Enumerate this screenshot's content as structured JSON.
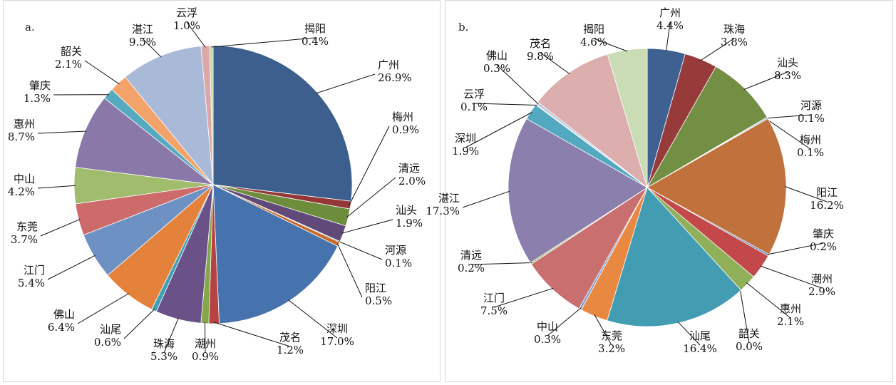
{
  "chart_data": [
    {
      "type": "pie",
      "panel_label": "a.",
      "unit": "%",
      "slices": [
        {
          "name": "广州",
          "value": 26.9,
          "label": "26.9%",
          "color": "#3d5f8e"
        },
        {
          "name": "梅州",
          "value": 0.9,
          "label": "0.9%",
          "color": "#953737"
        },
        {
          "name": "清远",
          "value": 2.0,
          "label": "2.0%",
          "color": "#6d8d3d"
        },
        {
          "name": "汕头",
          "value": 1.9,
          "label": "1.9%",
          "color": "#614a7a"
        },
        {
          "name": "河源",
          "value": 0.1,
          "label": "0.1%",
          "color": "#3a8da1"
        },
        {
          "name": "阳江",
          "value": 0.5,
          "label": "0.5%",
          "color": "#c86c2c"
        },
        {
          "name": "深圳",
          "value": 17.0,
          "label": "17.0%",
          "color": "#4672ae"
        },
        {
          "name": "茂名",
          "value": 1.2,
          "label": "1.2%",
          "color": "#b64341"
        },
        {
          "name": "潮州",
          "value": 0.9,
          "label": "0.9%",
          "color": "#86a64b"
        },
        {
          "name": "珠海",
          "value": 5.3,
          "label": "5.3%",
          "color": "#6a5289"
        },
        {
          "name": "汕尾",
          "value": 0.6,
          "label": "0.6%",
          "color": "#3f9fb5"
        },
        {
          "name": "佛山",
          "value": 6.4,
          "label": "6.4%",
          "color": "#e4813a"
        },
        {
          "name": "江门",
          "value": 5.4,
          "label": "5.4%",
          "color": "#6e91c4"
        },
        {
          "name": "东莞",
          "value": 3.7,
          "label": "3.7%",
          "color": "#cd6a6a"
        },
        {
          "name": "中山",
          "value": 4.2,
          "label": "4.2%",
          "color": "#a0bc6c"
        },
        {
          "name": "惠州",
          "value": 8.7,
          "label": "8.7%",
          "color": "#8a79a8"
        },
        {
          "name": "肇庆",
          "value": 1.3,
          "label": "1.3%",
          "color": "#56aabf"
        },
        {
          "name": "韶关",
          "value": 2.1,
          "label": "2.1%",
          "color": "#f3a26a"
        },
        {
          "name": "湛江",
          "value": 9.5,
          "label": "9.5%",
          "color": "#a8bad8"
        },
        {
          "name": "云浮",
          "value": 1.0,
          "label": "1.0%",
          "color": "#daa8a8"
        },
        {
          "name": "揭阳",
          "value": 0.4,
          "label": "0.4%",
          "color": "#c5d7a8"
        }
      ]
    },
    {
      "type": "pie",
      "panel_label": "b.",
      "unit": "%",
      "slices": [
        {
          "name": "广州",
          "value": 4.4,
          "label": "4.4%",
          "color": "#3f6192"
        },
        {
          "name": "珠海",
          "value": 3.8,
          "label": "3.8%",
          "color": "#963a3a"
        },
        {
          "name": "汕头",
          "value": 8.3,
          "label": "8.3%",
          "color": "#728f43"
        },
        {
          "name": "河源",
          "value": 0.1,
          "label": "0.1%",
          "color": "#5e4a7b"
        },
        {
          "name": "梅州",
          "value": 0.1,
          "label": "0.1%",
          "color": "#3c8aa0"
        },
        {
          "name": "阳江",
          "value": 16.2,
          "label": "16.2%",
          "color": "#c0713c"
        },
        {
          "name": "肇庆",
          "value": 0.2,
          "label": "0.2%",
          "color": "#5b7fb8"
        },
        {
          "name": "潮州",
          "value": 2.9,
          "label": "2.9%",
          "color": "#c2484a"
        },
        {
          "name": "惠州",
          "value": 2.1,
          "label": "2.1%",
          "color": "#8faf58"
        },
        {
          "name": "韶关",
          "value": 0.0,
          "label": "0.0%",
          "color": "#7d6aa0"
        },
        {
          "name": "汕尾",
          "value": 16.4,
          "label": "16.4%",
          "color": "#439db2"
        },
        {
          "name": "东莞",
          "value": 3.2,
          "label": "3.2%",
          "color": "#e88841"
        },
        {
          "name": "中山",
          "value": 0.3,
          "label": "0.3%",
          "color": "#7ca0d0"
        },
        {
          "name": "江门",
          "value": 7.5,
          "label": "7.5%",
          "color": "#c96f70"
        },
        {
          "name": "清远",
          "value": 0.2,
          "label": "0.2%",
          "color": "#a5c076"
        },
        {
          "name": "湛江",
          "value": 17.3,
          "label": "17.3%",
          "color": "#8b7fae"
        },
        {
          "name": "深圳",
          "value": 1.9,
          "label": "1.9%",
          "color": "#52a9c0"
        },
        {
          "name": "云浮",
          "value": 0.1,
          "label": "0.1%",
          "color": "#f2b383"
        },
        {
          "name": "佛山",
          "value": 0.3,
          "label": "0.3%",
          "color": "#b4c4de"
        },
        {
          "name": "茂名",
          "value": 9.8,
          "label": "9.8%",
          "color": "#ddaeae"
        },
        {
          "name": "揭阳",
          "value": 4.6,
          "label": "4.6%",
          "color": "#cadcb3"
        }
      ]
    }
  ]
}
